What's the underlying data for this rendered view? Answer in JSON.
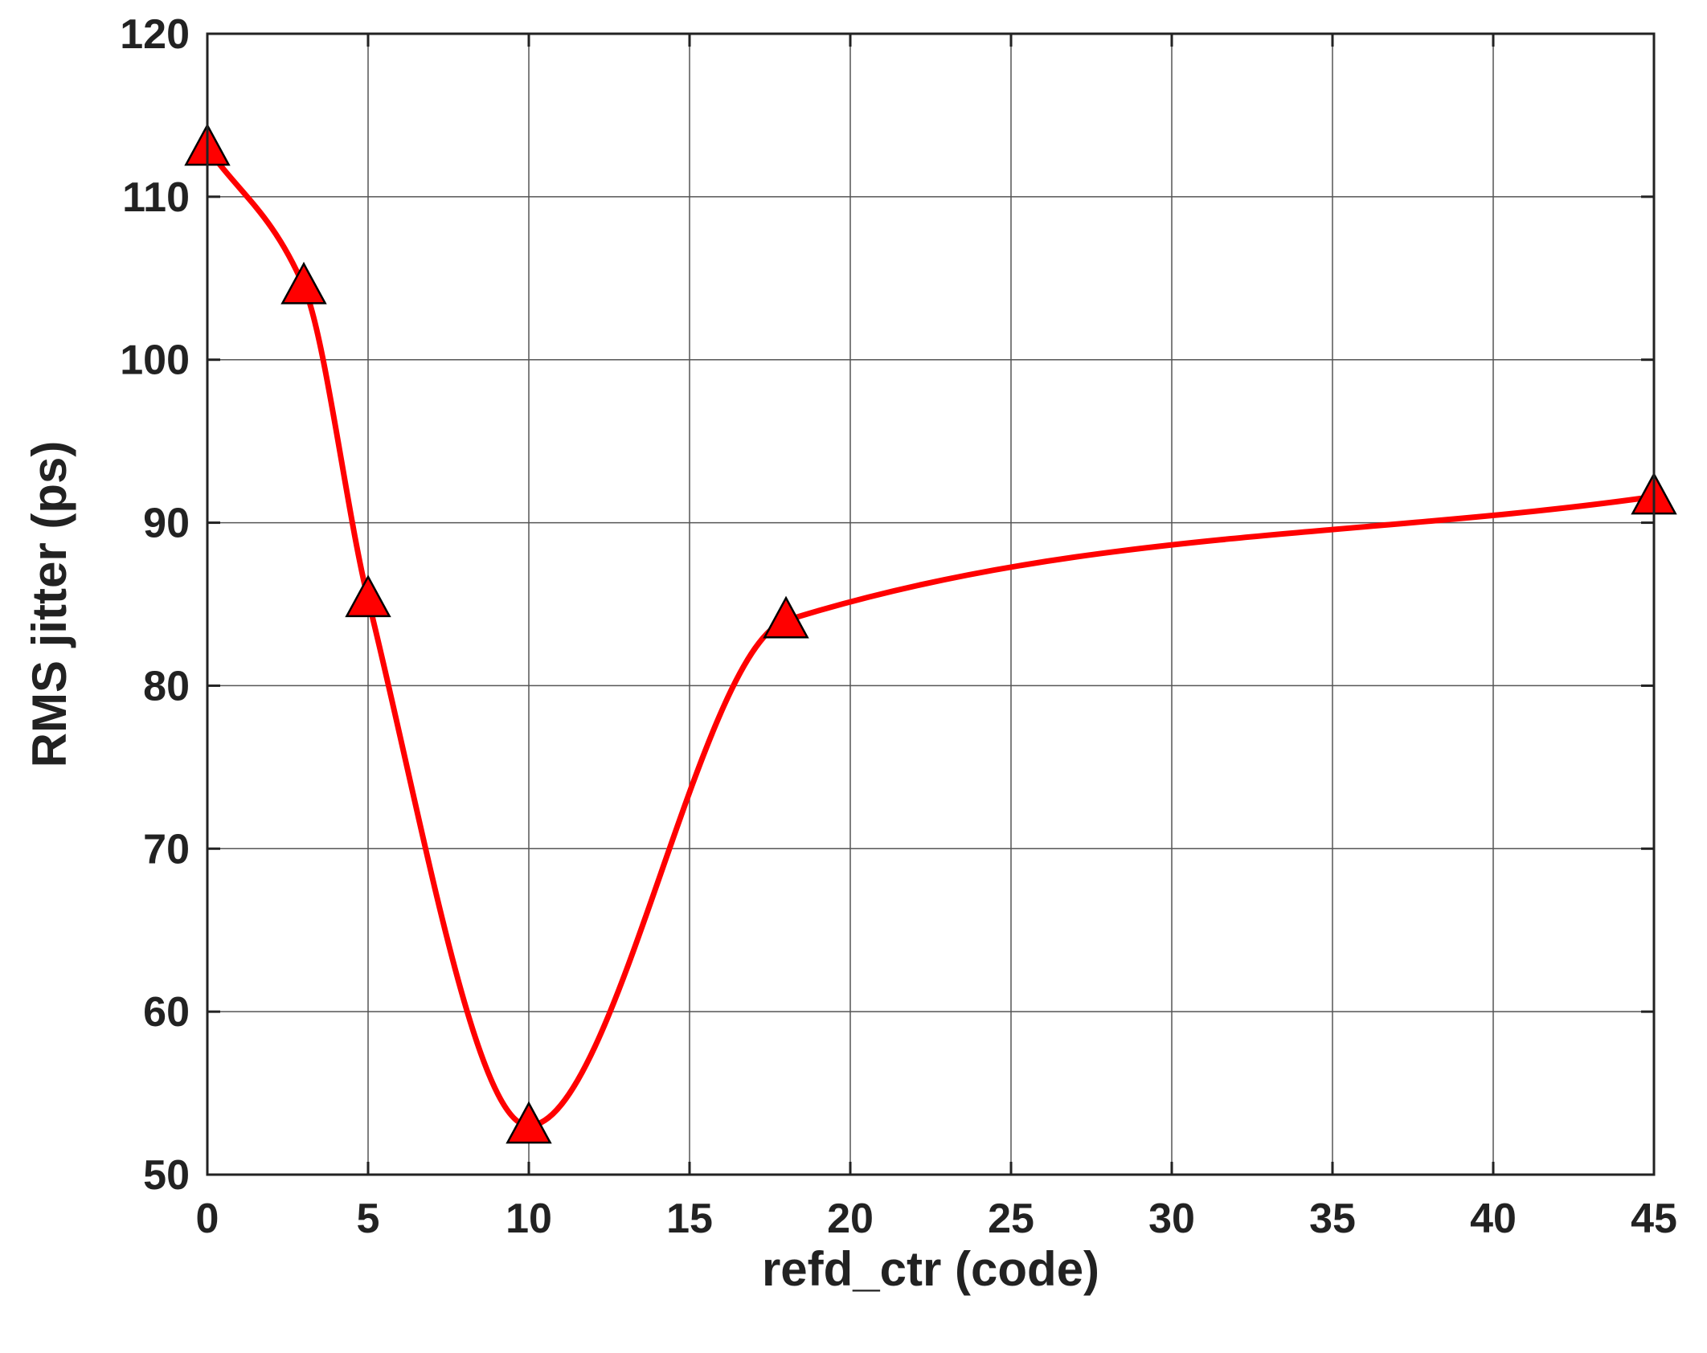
{
  "chart_data": {
    "type": "line",
    "title": "",
    "xlabel": "refd_ctr (code)",
    "ylabel": "RMS jitter (ps)",
    "xlim": [
      0,
      45
    ],
    "ylim": [
      50,
      120
    ],
    "xticks": [
      0,
      5,
      10,
      15,
      20,
      25,
      30,
      35,
      40,
      45
    ],
    "yticks": [
      50,
      60,
      70,
      80,
      90,
      100,
      110,
      120
    ],
    "grid": true,
    "legend": "none",
    "series": [
      {
        "x": [
          0,
          3,
          5,
          10,
          18,
          45
        ],
        "y": [
          113,
          104.5,
          85.3,
          53,
          84,
          91.6
        ],
        "color": "#ff0000",
        "line": "smooth",
        "marker": "triangle",
        "marker_color": "#ff0000"
      }
    ]
  }
}
